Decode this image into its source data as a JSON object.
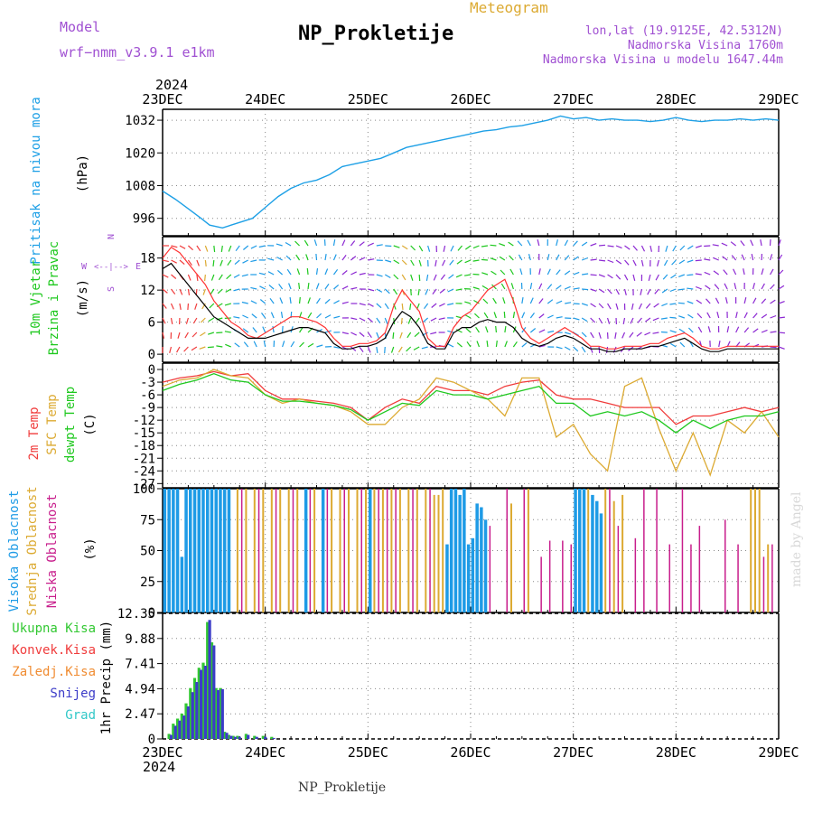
{
  "header": {
    "model_label": "Model",
    "model_name": "wrf−nmm_v3.9.1  e1km",
    "app_title": "Meteogram",
    "station_title": "NP_Prokletije",
    "location_line": "lon,lat (19.9125E, 42.5312N)",
    "elevation_line": "Nadmorska Visina 1760m",
    "model_elevation_line": "Nadmorska Visina u modelu 1647.44m",
    "footer_title": "NP_Prokletije",
    "credit": "made by Angel"
  },
  "colors": {
    "pressure": "#1ea0e6",
    "wind_speed_line": "#000000",
    "wind_gust": "#ff3232",
    "temp_2m": "#f03c3c",
    "temp_sfc": "#dcaa32",
    "dewpoint": "#1ec81e",
    "cloud_high": "#1e9be6",
    "cloud_mid": "#dcaa32",
    "cloud_low": "#c81e8c",
    "precip_total": "#32c832",
    "precip_conv": "#f03c3c",
    "precip_freezing": "#f08c32",
    "precip_snow": "#3c3cc8",
    "precip_hail": "#32c8c8",
    "title_text": "#000000",
    "model_text": "#a050d2",
    "meteogram_text": "#dcaa32"
  },
  "chart_data": [
    {
      "type": "line",
      "name": "pressure",
      "ylabel_1": "Pritisak na nivou mora",
      "ylabel_2": "(hPa)",
      "x_ticks": [
        "23DEC",
        "24DEC",
        "25DEC",
        "26DEC",
        "27DEC",
        "28DEC",
        "29DEC"
      ],
      "x_year": "2024",
      "xlim": [
        0,
        144
      ],
      "ylim": [
        989.6,
        1036
      ],
      "y_ticks": [
        996,
        1008,
        1020,
        1032
      ],
      "grid": true,
      "x": [
        0,
        3,
        6,
        9,
        11,
        14,
        16,
        18,
        21,
        24,
        27,
        30,
        33,
        36,
        39,
        42,
        45,
        48,
        51,
        54,
        57,
        60,
        63,
        66,
        69,
        72,
        75,
        78,
        81,
        84,
        87,
        90,
        93,
        96,
        99,
        102,
        105,
        108,
        111,
        114,
        117,
        120,
        123,
        126,
        129,
        132,
        135,
        138,
        141,
        144
      ],
      "values": [
        1006,
        1003,
        999.5,
        996,
        993.5,
        992.5,
        993.5,
        994.5,
        996,
        1000,
        1004,
        1007,
        1009,
        1010,
        1012,
        1015,
        1016,
        1017,
        1018,
        1020,
        1022,
        1023,
        1024,
        1025,
        1026,
        1027,
        1028,
        1028.5,
        1029.5,
        1030,
        1031,
        1032,
        1033.5,
        1032.5,
        1033,
        1032,
        1032.5,
        1032,
        1032,
        1031.5,
        1032,
        1033,
        1032,
        1031.5,
        1032,
        1032,
        1032.5,
        1032,
        1032.5,
        1032
      ]
    },
    {
      "type": "line",
      "name": "wind",
      "ylabel_1": "10m Vjetar",
      "ylabel_2": "Brzina i Pravac",
      "ylabel_3": "(m/s)",
      "compass": {
        "north": "N",
        "south": "S",
        "west": "W",
        "east": "E"
      },
      "xlim": [
        0,
        144
      ],
      "ylim": [
        -1.5,
        22
      ],
      "y_ticks": [
        0,
        6,
        12,
        18
      ],
      "grid": true,
      "x": [
        0,
        2,
        4,
        6,
        8,
        10,
        12,
        14,
        16,
        18,
        20,
        22,
        24,
        26,
        28,
        30,
        32,
        34,
        36,
        38,
        40,
        42,
        44,
        46,
        48,
        50,
        52,
        54,
        56,
        58,
        60,
        62,
        64,
        66,
        68,
        70,
        72,
        74,
        76,
        78,
        80,
        82,
        84,
        86,
        88,
        90,
        92,
        94,
        96,
        98,
        100,
        102,
        104,
        106,
        108,
        110,
        112,
        114,
        116,
        118,
        120,
        122,
        124,
        126,
        128,
        130,
        132,
        134,
        136,
        138,
        140,
        142,
        144
      ],
      "speed": [
        16,
        17,
        15,
        13,
        11,
        9,
        7,
        6,
        5,
        4,
        3,
        3,
        3,
        3.5,
        4,
        4.5,
        5,
        5,
        4.5,
        4,
        2,
        1,
        1,
        1.5,
        1.5,
        2,
        3,
        6,
        8,
        7,
        5,
        2,
        1,
        1,
        4,
        5,
        5,
        6,
        6.5,
        6,
        6,
        5,
        3,
        2,
        1.5,
        2,
        3,
        3.5,
        3,
        2,
        1,
        1,
        0.5,
        0.5,
        1,
        1,
        1,
        1.5,
        1.5,
        2,
        2.5,
        3,
        2,
        1,
        0.5,
        0.5,
        1,
        1,
        1,
        1,
        1,
        1,
        1
      ],
      "gust": [
        18,
        20,
        19,
        17,
        15,
        13,
        10,
        8,
        6,
        5,
        3.5,
        3,
        4,
        5,
        6,
        7,
        7,
        6.5,
        6,
        5,
        3,
        1.5,
        1.5,
        2,
        2,
        2.5,
        4,
        9,
        12,
        10,
        8,
        3,
        1.5,
        1.5,
        5,
        7,
        8,
        10,
        12,
        13,
        14,
        10,
        5,
        3,
        2,
        3,
        4,
        5,
        4,
        3,
        1.5,
        1.5,
        1,
        1,
        1.5,
        1.5,
        1.5,
        2,
        2,
        3,
        3.5,
        4,
        3,
        1.5,
        1,
        1,
        1.5,
        1.5,
        1.5,
        1.5,
        1.5,
        1.5,
        1.5
      ]
    },
    {
      "type": "line",
      "name": "temperature",
      "ylabel_1": "2m Temp",
      "ylabel_2": "SFC Temp",
      "ylabel_3": "dewpt Temp",
      "ylabel_4": "(C)",
      "xlim": [
        0,
        144
      ],
      "ylim": [
        -28,
        1.5
      ],
      "y_ticks": [
        0,
        -3,
        -6,
        -9,
        -12,
        -15,
        -18,
        -21,
        -24,
        -27
      ],
      "grid": true,
      "x": [
        0,
        4,
        8,
        12,
        16,
        20,
        24,
        28,
        32,
        36,
        40,
        44,
        48,
        52,
        56,
        60,
        64,
        68,
        72,
        76,
        80,
        84,
        88,
        92,
        96,
        100,
        104,
        108,
        112,
        116,
        120,
        124,
        128,
        132,
        136,
        140,
        144
      ],
      "series": [
        {
          "name": "2m Temp",
          "values": [
            -3,
            -2,
            -1.5,
            -0.5,
            -1.5,
            -1,
            -5,
            -7,
            -7,
            -7.5,
            -8,
            -9,
            -12,
            -9,
            -7,
            -8,
            -4,
            -5,
            -5,
            -6,
            -4,
            -3,
            -2.5,
            -6,
            -7,
            -7,
            -8,
            -9,
            -9,
            -9,
            -13,
            -11,
            -11,
            -10,
            -9,
            -10,
            -9
          ]
        },
        {
          "name": "SFC Temp",
          "values": [
            -4,
            -2.5,
            -2,
            0,
            -1.5,
            -2,
            -6,
            -8,
            -7,
            -8,
            -8.5,
            -10,
            -13,
            -13,
            -9,
            -7,
            -2,
            -3,
            -5,
            -7,
            -11,
            -2,
            -2,
            -16,
            -13,
            -20,
            -24,
            -4,
            -2,
            -14,
            -24,
            -15,
            -25,
            -12,
            -15,
            -10,
            -16
          ]
        },
        {
          "name": "dewpt Temp",
          "values": [
            -5,
            -3.5,
            -2.5,
            -1,
            -2.5,
            -3,
            -6,
            -7.5,
            -7.5,
            -8,
            -8.5,
            -9.5,
            -12,
            -10,
            -8,
            -8.5,
            -5,
            -6,
            -6,
            -7,
            -6,
            -5,
            -4,
            -8,
            -8,
            -11,
            -10,
            -11,
            -10,
            -12,
            -15,
            -12,
            -14,
            -12,
            -11,
            -11,
            -10
          ]
        }
      ]
    },
    {
      "type": "bar",
      "name": "clouds",
      "ylabel_1": "Visoka Oblacnost",
      "ylabel_2": "Srednja Oblacnost",
      "ylabel_3": "Niska Oblacnost",
      "ylabel_4": "(%)",
      "xlim": [
        0,
        144
      ],
      "ylim": [
        0,
        100
      ],
      "y_ticks": [
        0,
        25,
        50,
        75,
        100
      ],
      "grid": true,
      "series": [
        {
          "name": "Visoka Oblacnost",
          "x": [
            0.5,
            1.5,
            2.5,
            3.5,
            4.5,
            5.5,
            6.5,
            7.5,
            8.5,
            9.5,
            10.5,
            11.5,
            12.5,
            13.5,
            14.5,
            15.5,
            33.5,
            37.5,
            48.5,
            66.5,
            67.5,
            68.5,
            69.5,
            70.5,
            71.5,
            72.5,
            73.5,
            74.5,
            75.5,
            96.5,
            97.5,
            98.5,
            100.5,
            101.5,
            102.5
          ],
          "values": [
            100,
            100,
            100,
            100,
            45,
            100,
            100,
            100,
            100,
            100,
            100,
            100,
            100,
            100,
            100,
            100,
            100,
            100,
            100,
            55,
            100,
            100,
            95,
            100,
            55,
            60,
            88,
            85,
            75,
            100,
            100,
            100,
            95,
            90,
            80
          ]
        },
        {
          "name": "Srednja Oblacnost",
          "x": [
            17.5,
            19.5,
            21.5,
            23.5,
            25.5,
            27.5,
            29.5,
            31.5,
            35.5,
            39.5,
            41.5,
            43.5,
            45.5,
            47.5,
            49.5,
            51.5,
            53.5,
            55.5,
            57.5,
            59.5,
            61.5,
            63.5,
            64.5,
            65.5,
            81.5,
            85.5,
            99.5,
            103.5,
            105.5,
            107.5,
            137.5,
            138.5,
            139.5,
            141.5
          ],
          "values": [
            100,
            100,
            100,
            100,
            100,
            100,
            100,
            100,
            100,
            100,
            100,
            100,
            100,
            100,
            100,
            100,
            100,
            100,
            100,
            100,
            100,
            95,
            95,
            100,
            88,
            100,
            100,
            100,
            90,
            95,
            100,
            100,
            100,
            55
          ]
        },
        {
          "name": "Niska Oblacnost",
          "x": [
            18.5,
            22.5,
            26.5,
            30.5,
            34.5,
            38.5,
            42.5,
            46.5,
            50.5,
            52.5,
            54.5,
            58.5,
            62.5,
            76.5,
            80.5,
            84.5,
            88.5,
            90.5,
            93.5,
            95.5,
            104.5,
            106.5,
            110.5,
            112.5,
            115.5,
            118.5,
            121.5,
            123.5,
            125.5,
            131.5,
            134.5,
            140.5,
            142.5
          ],
          "values": [
            100,
            100,
            100,
            100,
            100,
            100,
            100,
            100,
            100,
            100,
            100,
            100,
            100,
            70,
            100,
            100,
            45,
            58,
            58,
            55,
            100,
            70,
            60,
            100,
            100,
            55,
            100,
            55,
            70,
            75,
            55,
            45,
            55
          ]
        }
      ]
    },
    {
      "type": "bar",
      "name": "precipitation",
      "ylabel": "1hr Precip (mm)",
      "legend": [
        "Ukupna Kisa",
        "Konvek.Kisa",
        "Zaledj.Kisa",
        "Snijeg",
        "Grad"
      ],
      "xlim": [
        0,
        144
      ],
      "ylim": [
        0,
        12.35
      ],
      "y_ticks": [
        0,
        2.47,
        4.94,
        7.41,
        9.88,
        12.35
      ],
      "grid": true,
      "series": [
        {
          "name": "Ukupna Kisa",
          "x": [
            1.5,
            2.5,
            3.5,
            4.5,
            5.5,
            6.5,
            7.5,
            8.5,
            9.5,
            10.5,
            11.5,
            12.5,
            13.5,
            14.5,
            15.5,
            16.5,
            17.5,
            19.5,
            21.5,
            23.5,
            25.5
          ],
          "values": [
            0.5,
            1.5,
            2,
            2.5,
            3.5,
            5,
            6,
            7,
            7.5,
            11.5,
            9.5,
            5,
            5,
            0.7,
            0.4,
            0.3,
            0.3,
            0.5,
            0.3,
            0.3,
            0.2
          ]
        },
        {
          "name": "Snijeg",
          "x": [
            2,
            3,
            4,
            5,
            6,
            7,
            8,
            9,
            10,
            11,
            12,
            13,
            14,
            15,
            16,
            17,
            18,
            20,
            22,
            24,
            26
          ],
          "values": [
            0.4,
            1.3,
            1.8,
            2.3,
            3.2,
            4.6,
            5.6,
            6.8,
            7.2,
            11.7,
            9.2,
            4.8,
            4.9,
            0.6,
            0.3,
            0.2,
            0.2,
            0.4,
            0.2,
            0.2,
            0.1
          ]
        }
      ]
    }
  ]
}
